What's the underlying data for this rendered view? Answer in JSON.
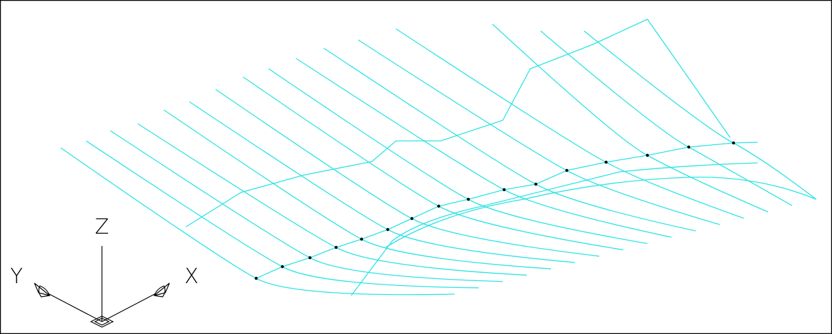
{
  "axis_labels": {
    "z": "Z",
    "y": "Y",
    "x": "X"
  }
}
